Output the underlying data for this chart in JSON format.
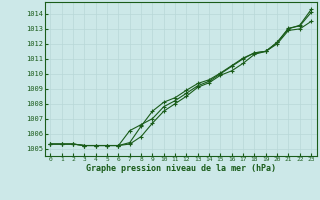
{
  "title": "Graphe pression niveau de la mer (hPa)",
  "bg_color": "#cce8e8",
  "grid_color": "#b8d8d8",
  "line_color": "#1a5c1a",
  "xlim": [
    -0.5,
    23.5
  ],
  "ylim": [
    1004.5,
    1014.8
  ],
  "yticks": [
    1005,
    1006,
    1007,
    1008,
    1009,
    1010,
    1011,
    1012,
    1013,
    1014
  ],
  "xticks": [
    0,
    1,
    2,
    3,
    4,
    5,
    6,
    7,
    8,
    9,
    10,
    11,
    12,
    13,
    14,
    15,
    16,
    17,
    18,
    19,
    20,
    21,
    22,
    23
  ],
  "series": [
    [
      1005.3,
      1005.3,
      1005.3,
      1005.2,
      1005.2,
      1005.2,
      1005.2,
      1005.3,
      1005.8,
      1006.7,
      1007.5,
      1008.0,
      1008.5,
      1009.1,
      1009.4,
      1009.9,
      1010.2,
      1010.7,
      1011.3,
      1011.5,
      1012.0,
      1012.9,
      1013.0,
      1013.5
    ],
    [
      1005.3,
      1005.3,
      1005.3,
      1005.2,
      1005.2,
      1005.2,
      1005.2,
      1005.4,
      1006.5,
      1007.5,
      1008.1,
      1008.4,
      1008.9,
      1009.35,
      1009.6,
      1010.05,
      1010.55,
      1011.05,
      1011.4,
      1011.5,
      1012.1,
      1013.05,
      1013.2,
      1014.1
    ],
    [
      1005.3,
      1005.3,
      1005.3,
      1005.2,
      1005.2,
      1005.2,
      1005.2,
      1006.2,
      1006.6,
      1007.0,
      1007.8,
      1008.2,
      1008.7,
      1009.2,
      1009.5,
      1010.0,
      1010.5,
      1011.0,
      1011.4,
      1011.5,
      1012.1,
      1013.0,
      1013.25,
      1014.3
    ]
  ],
  "ytick_fontsize": 5,
  "xtick_fontsize": 4.5,
  "xlabel_fontsize": 6,
  "linewidth": 0.8,
  "markersize": 2.5
}
